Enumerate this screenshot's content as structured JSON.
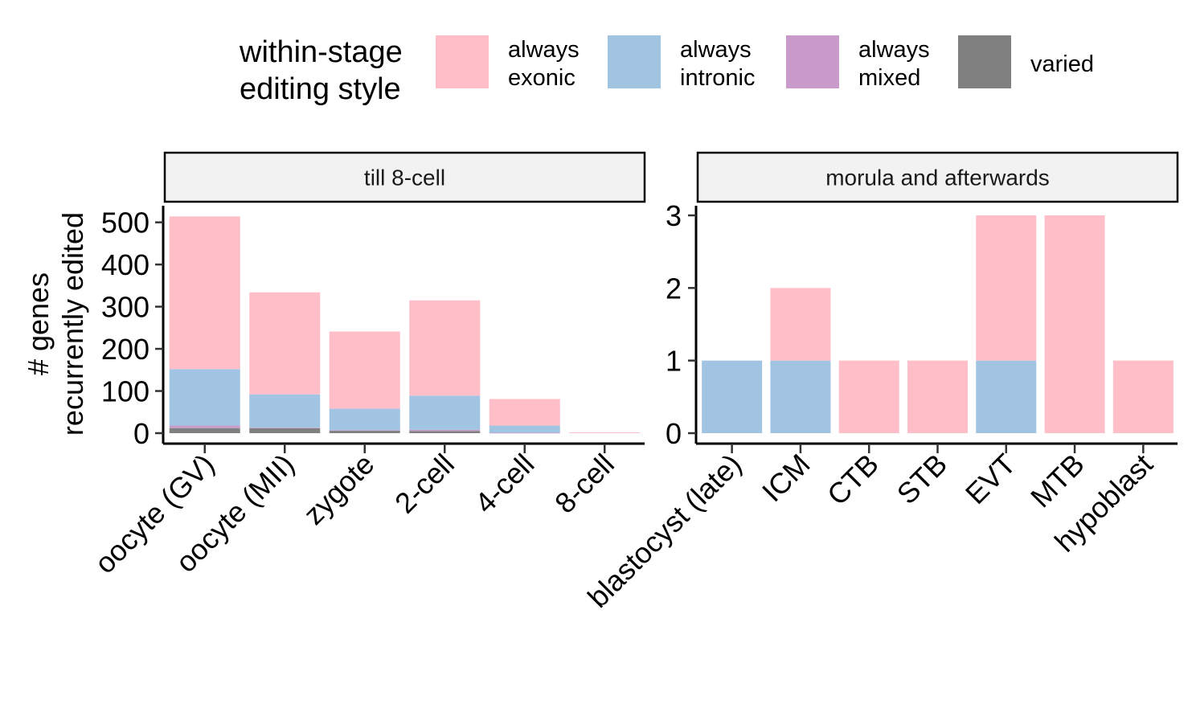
{
  "chart_data": {
    "type": "bar",
    "stacked": true,
    "ylabel": [
      "# genes",
      "recurrently edited"
    ],
    "xlabel": "",
    "legend": {
      "title": [
        "within-stage",
        "editing style"
      ],
      "position": "top",
      "entries": [
        {
          "key": "always_exonic",
          "label": [
            "always",
            "exonic"
          ],
          "color": "#FFBEC8"
        },
        {
          "key": "always_intronic",
          "label": [
            "always",
            "intronic"
          ],
          "color": "#A0C4E2"
        },
        {
          "key": "always_mixed",
          "label": [
            "always",
            "mixed"
          ],
          "color": "#C89BCA"
        },
        {
          "key": "varied",
          "label": [
            "varied"
          ],
          "color": "#808080"
        }
      ]
    },
    "stack_order": [
      "varied",
      "always_mixed",
      "always_intronic",
      "always_exonic"
    ],
    "panels": [
      {
        "strip": "till 8-cell",
        "ylim": [
          0,
          525
        ],
        "yticks": [
          0,
          100,
          200,
          300,
          400,
          500
        ],
        "categories": [
          "oocyte (GV)",
          "oocyte (MII)",
          "zygote",
          "2-cell",
          "4-cell",
          "8-cell"
        ],
        "series": {
          "varied": [
            12,
            12,
            6,
            5,
            0,
            0
          ],
          "always_mixed": [
            6,
            1,
            1,
            3,
            1,
            0
          ],
          "always_intronic": [
            134,
            79,
            51,
            81,
            17,
            0
          ],
          "always_exonic": [
            362,
            242,
            183,
            226,
            63,
            2
          ]
        }
      },
      {
        "strip": "morula and afterwards",
        "ylim": [
          0,
          3.1
        ],
        "yticks": [
          0,
          1,
          2,
          3
        ],
        "categories": [
          "blastocyst (late)",
          "ICM",
          "CTB",
          "STB",
          "EVT",
          "MTB",
          "hypoblast"
        ],
        "series": {
          "varied": [
            0,
            0,
            0,
            0,
            0,
            0,
            0
          ],
          "always_mixed": [
            0,
            0,
            0,
            0,
            0,
            0,
            0
          ],
          "always_intronic": [
            1,
            1,
            0,
            0,
            1,
            0,
            0
          ],
          "always_exonic": [
            0,
            1,
            1,
            1,
            2,
            3,
            1
          ]
        }
      }
    ]
  }
}
